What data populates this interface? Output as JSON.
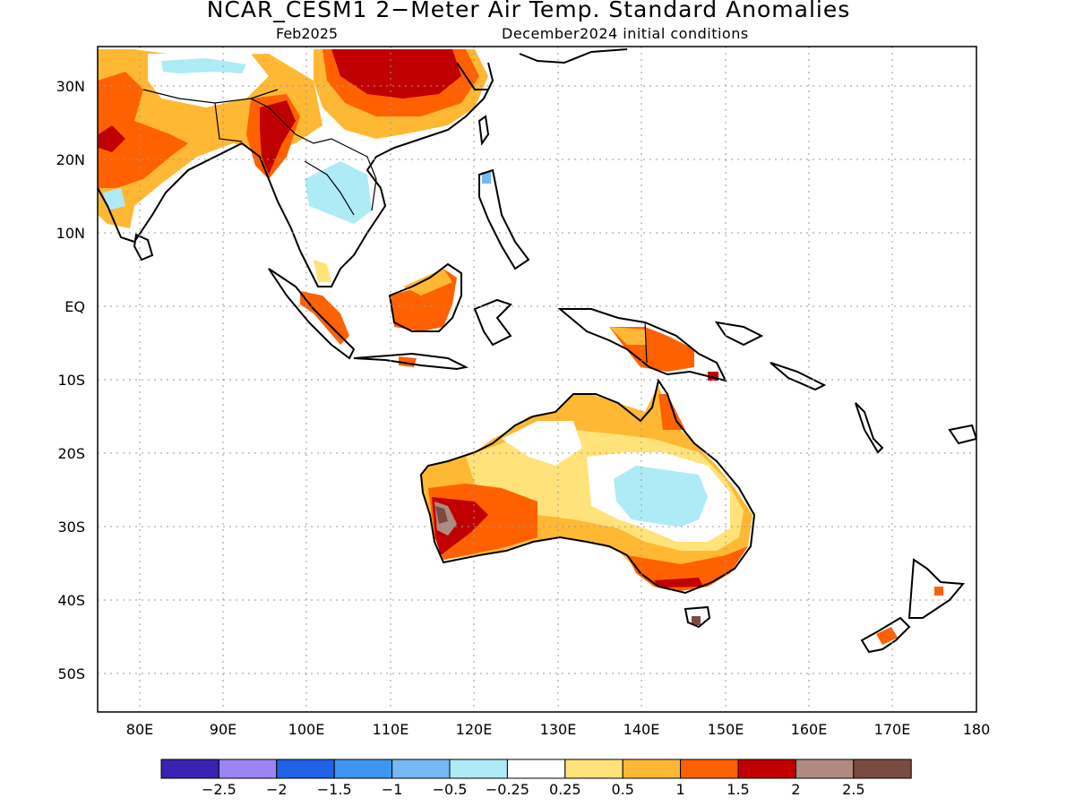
{
  "header": {
    "title": "NCAR_CESM1 2−Meter Air Temp. Standard Anomalies",
    "valid_month": "Feb2025",
    "init": "December2024 initial conditions"
  },
  "map": {
    "lon_range": [
      75,
      180
    ],
    "lat_range": [
      -55,
      35
    ],
    "lat_labels": [
      {
        "lat": 30,
        "text": "30N"
      },
      {
        "lat": 20,
        "text": "20N"
      },
      {
        "lat": 10,
        "text": "10N"
      },
      {
        "lat": 0,
        "text": "EQ"
      },
      {
        "lat": -10,
        "text": "10S"
      },
      {
        "lat": -20,
        "text": "20S"
      },
      {
        "lat": -30,
        "text": "30S"
      },
      {
        "lat": -40,
        "text": "40S"
      },
      {
        "lat": -50,
        "text": "50S"
      }
    ],
    "lon_labels": [
      {
        "lon": 80,
        "text": "80E"
      },
      {
        "lon": 90,
        "text": "90E"
      },
      {
        "lon": 100,
        "text": "100E"
      },
      {
        "lon": 110,
        "text": "110E"
      },
      {
        "lon": 120,
        "text": "120E"
      },
      {
        "lon": 130,
        "text": "130E"
      },
      {
        "lon": 140,
        "text": "140E"
      },
      {
        "lon": 150,
        "text": "150E"
      },
      {
        "lon": 160,
        "text": "160E"
      },
      {
        "lon": 170,
        "text": "170E"
      },
      {
        "lon": 180,
        "text": "180"
      }
    ]
  },
  "colorbar": {
    "colors": [
      "#3a22b2",
      "#9b85f5",
      "#1f62e6",
      "#3d96f0",
      "#77b8f4",
      "#afeaf7",
      "#ffffff",
      "#ffe27a",
      "#ffb834",
      "#ff6100",
      "#c00000",
      "#b08a80",
      "#7a4c40"
    ],
    "labels": [
      "−2.5",
      "−2",
      "−1.5",
      "−1",
      "−0.5",
      "−0.25",
      "0.25",
      "0.5",
      "1",
      "1.5",
      "2",
      "2.5"
    ]
  }
}
